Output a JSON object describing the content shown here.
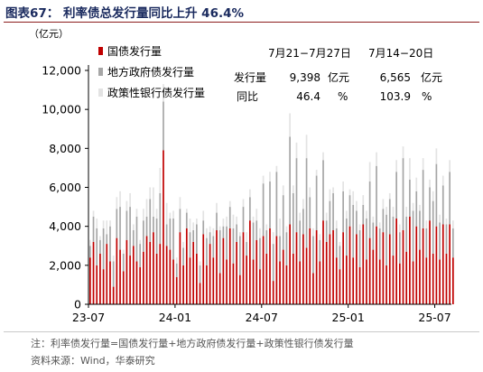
{
  "title": "图表67：  利率债总发行量同比上升 46.4%",
  "note": "注：利率债发行量=国债发行量+地方政府债发行量+政策性银行债发行量",
  "source": "资料来源：Wind，华泰研究",
  "colors": {
    "title": "#1a2a5e",
    "rule": "#8c1d1d",
    "gov_bond": "#c00000",
    "local_gov_bond": "#a6a6a6",
    "policy_bank_bond": "#e3e3e3"
  },
  "stats_table": {
    "headers": [
      "7月21−7月27日",
      "7月14−20日"
    ],
    "rows": [
      {
        "label": "发行量",
        "values": [
          "9,398",
          "6,565"
        ],
        "unit": "亿元"
      },
      {
        "label": "同比",
        "values": [
          "46.4",
          "103.9"
        ],
        "unit": "%"
      }
    ]
  },
  "chart_data": {
    "type": "bar",
    "stacked": true,
    "ylabel": "（亿元）",
    "ylim": [
      0,
      12000
    ],
    "yticks": [
      0,
      2000,
      4000,
      6000,
      8000,
      10000,
      12000
    ],
    "ytick_labels": [
      "0",
      "2,000",
      "4,000",
      "6,000",
      "8,000",
      "10,000",
      "12,000"
    ],
    "x_tick_labels": [
      "23-07",
      "24-01",
      "24-07",
      "25-01",
      "25-07"
    ],
    "x_tick_positions": [
      0,
      26,
      52,
      78,
      104
    ],
    "x_range": [
      0,
      109
    ],
    "grid": false,
    "legend_position": "top-left",
    "series": [
      {
        "name": "国债发行量",
        "color": "#c00000",
        "values": [
          2400,
          3200,
          2000,
          2600,
          1800,
          3100,
          2200,
          900,
          3400,
          2800,
          1700,
          3300,
          2500,
          3000,
          2200,
          1900,
          2700,
          3500,
          3200,
          3700,
          2600,
          3100,
          7900,
          3000,
          2800,
          2300,
          1400,
          3700,
          2000,
          3900,
          2400,
          3200,
          2600,
          1100,
          3600,
          2000,
          3100,
          2400,
          3800,
          1600,
          3400,
          2300,
          3900,
          2100,
          3200,
          1500,
          3700,
          2500,
          4300,
          2300,
          3300,
          1800,
          3500,
          2600,
          3900,
          1200,
          3500,
          2200,
          2800,
          2000,
          4100,
          2600,
          3700,
          2200,
          3600,
          2900,
          3900,
          1600,
          3800,
          2200,
          4300,
          3200,
          3600,
          3800,
          2400,
          1800,
          3700,
          2500,
          4000,
          2400,
          3600,
          1900,
          4100,
          2300,
          3400,
          2800,
          4000,
          2300,
          3700,
          2000,
          3600,
          2500,
          4400,
          2100,
          3800,
          2700,
          4500,
          2200,
          4000,
          2800,
          3900,
          2400,
          4300,
          2600,
          4000,
          2300,
          4100,
          2600,
          4100,
          2400
        ]
      },
      {
        "name": "地方政府债发行量",
        "color": "#a6a6a6",
        "values": [
          600,
          1300,
          1900,
          700,
          2100,
          500,
          1800,
          1300,
          1500,
          2200,
          900,
          1500,
          2500,
          800,
          2300,
          1200,
          1600,
          1000,
          2200,
          800,
          1800,
          2600,
          2500,
          1100,
          1600,
          2100,
          700,
          1200,
          900,
          800,
          1300,
          600,
          1500,
          900,
          700,
          1400,
          600,
          1100,
          900,
          2200,
          600,
          1700,
          1100,
          1800,
          900,
          2000,
          1300,
          700,
          1200,
          1900,
          1000,
          1600,
          2700,
          1200,
          2400,
          1900,
          3300,
          1300,
          2800,
          1700,
          4500,
          3100,
          3800,
          2100,
          1300,
          4600,
          1600,
          1900,
          2800,
          1100,
          3100,
          1100,
          1700,
          1900,
          1500,
          1200,
          2100,
          1900,
          1600,
          2700,
          1200,
          1900,
          1000,
          2100,
          2900,
          1400,
          3100,
          1600,
          1200,
          2600,
          1800,
          2000,
          2400,
          1600,
          3700,
          1800,
          1900,
          2600,
          1800,
          2000,
          3000,
          1500,
          1700,
          2700,
          3200,
          1900,
          2000,
          1500,
          2700,
          1500
        ]
      },
      {
        "name": "政策性银行债发行量",
        "color": "#e3e3e3",
        "values": [
          300,
          300,
          500,
          200,
          400,
          700,
          300,
          300,
          600,
          800,
          200,
          500,
          700,
          300,
          400,
          200,
          600,
          900,
          600,
          1500,
          500,
          1300,
          900,
          1100,
          300,
          400,
          300,
          600,
          300,
          200,
          700,
          400,
          300,
          200,
          500,
          500,
          300,
          400,
          500,
          200,
          400,
          500,
          300,
          700,
          400,
          200,
          400,
          500,
          400,
          300,
          600,
          500,
          400,
          300,
          500,
          600,
          300,
          900,
          500,
          300,
          1200,
          400,
          800,
          400,
          500,
          1200,
          500,
          400,
          300,
          300,
          400,
          400,
          600,
          300,
          400,
          200,
          500,
          400,
          300,
          700,
          500,
          300,
          500,
          400,
          1000,
          300,
          700,
          300,
          500,
          400,
          300,
          500,
          600,
          400,
          600,
          500,
          1100,
          400,
          700,
          300,
          600,
          400,
          400,
          500,
          800,
          400,
          500,
          300,
          600,
          400
        ]
      }
    ]
  }
}
